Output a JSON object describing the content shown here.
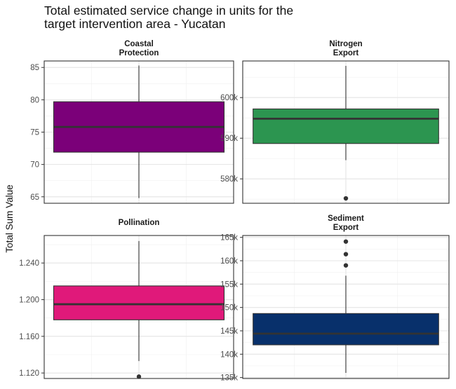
{
  "title_line1": "Total estimated service change in units for the",
  "title_line2": "target intervention area - Yucatan",
  "ylabel": "Total Sum Value",
  "chart_data": [
    {
      "type": "boxplot",
      "facet_line1": "Coastal",
      "facet_line2": "Protection",
      "color": "#7b0079",
      "ylim": [
        64.0,
        86.0
      ],
      "ticks": [
        65,
        70,
        75,
        80,
        85
      ],
      "tick_labels": [
        "65",
        "70",
        "75",
        "80",
        "85"
      ],
      "min": 64.8,
      "q1": 71.9,
      "median": 75.8,
      "q3": 79.7,
      "max": 85.3,
      "outliers": []
    },
    {
      "type": "boxplot",
      "facet_line1": "Nitrogen",
      "facet_line2": "Export",
      "color": "#2c9550",
      "ylim": [
        574000,
        609000
      ],
      "ticks": [
        580000,
        590000,
        600000
      ],
      "tick_labels": [
        "580k",
        "590k",
        "600k"
      ],
      "min": 584600,
      "q1": 588700,
      "median": 594800,
      "q3": 597200,
      "max": 607800,
      "outliers": [
        575200
      ]
    },
    {
      "type": "boxplot",
      "facet_line1": "Pollination",
      "facet_line2": "",
      "color": "#e0197a",
      "ylim": [
        1.114,
        1.27
      ],
      "ticks": [
        1.12,
        1.16,
        1.2,
        1.24
      ],
      "tick_labels": [
        "1.120",
        "1.160",
        "1.200",
        "1.240"
      ],
      "min": 1.133,
      "q1": 1.178,
      "median": 1.195,
      "q3": 1.215,
      "max": 1.264,
      "outliers": [
        1.116
      ]
    },
    {
      "type": "boxplot",
      "facet_line1": "Sediment",
      "facet_line2": "Export",
      "color": "#08306b",
      "ylim": [
        134800,
        165400
      ],
      "ticks": [
        135000,
        140000,
        145000,
        150000,
        155000,
        160000,
        165000
      ],
      "tick_labels": [
        "135k",
        "140k",
        "145k",
        "150k",
        "155k",
        "160k",
        "165k"
      ],
      "min": 136000,
      "q1": 142000,
      "median": 144400,
      "q3": 148700,
      "max": 156800,
      "outliers": [
        159000,
        161400,
        164100
      ]
    }
  ]
}
